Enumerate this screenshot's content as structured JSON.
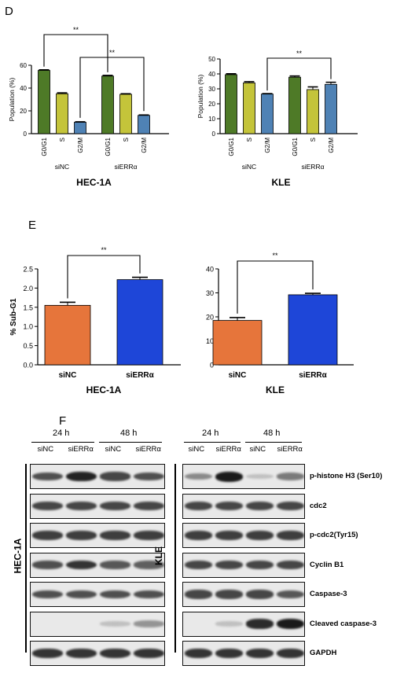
{
  "panels": {
    "d": "D",
    "e": "E",
    "f": "F"
  },
  "sig": "**",
  "colors": {
    "green": "#4e7a27",
    "yellow": "#c4c43a",
    "steel": "#4f82b5",
    "orange": "#e6753b",
    "blue": "#1e46d8"
  },
  "chart_data": [
    {
      "type": "bar",
      "panel": "D",
      "subtitle": "HEC-1A",
      "ylabel": "Population (%)",
      "ylim": [
        0,
        60
      ],
      "yticks": [
        "0",
        "20",
        "40",
        "60"
      ],
      "groups": [
        {
          "name": "siNC",
          "categories": [
            "G0/G1",
            "S",
            "G2/M"
          ],
          "values": [
            55.5,
            35,
            10
          ],
          "errors": [
            0.5,
            0.8,
            0.4
          ]
        },
        {
          "name": "siERRα",
          "categories": [
            "G0/G1",
            "S",
            "G2/M"
          ],
          "values": [
            50.5,
            34.5,
            16
          ],
          "errors": [
            0.6,
            0.5,
            0.4
          ]
        }
      ]
    },
    {
      "type": "bar",
      "panel": "D",
      "subtitle": "KLE",
      "ylabel": "Population (%)",
      "ylim": [
        0,
        50
      ],
      "yticks": [
        "0",
        "10",
        "20",
        "30",
        "40",
        "50"
      ],
      "groups": [
        {
          "name": "siNC",
          "categories": [
            "G0/G1",
            "S",
            "G2/M"
          ],
          "values": [
            39.5,
            34,
            26.5
          ],
          "errors": [
            0.6,
            0.8,
            0.3
          ]
        },
        {
          "name": "siERRα",
          "categories": [
            "G0/G1",
            "S",
            "G2/M"
          ],
          "values": [
            37.8,
            29.5,
            33
          ],
          "errors": [
            0.8,
            1.8,
            1.4
          ]
        }
      ]
    },
    {
      "type": "bar",
      "panel": "E",
      "subtitle": "HEC-1A",
      "ylabel": "% Sub-G1",
      "ylim": [
        0,
        2.5
      ],
      "yticks": [
        "0.0",
        "0.5",
        "1.0",
        "1.5",
        "2.0",
        "2.5"
      ],
      "categories": [
        "siNC",
        "siERRα"
      ],
      "values": [
        1.55,
        2.22
      ],
      "errors": [
        0.08,
        0.06
      ]
    },
    {
      "type": "bar",
      "panel": "E",
      "subtitle": "KLE",
      "ylabel": "% Sub-G1",
      "ylim": [
        0,
        40
      ],
      "yticks": [
        "0",
        "10",
        "20",
        "30",
        "40"
      ],
      "categories": [
        "siNC",
        "siERRα"
      ],
      "values": [
        18.5,
        29.2
      ],
      "errors": [
        1.2,
        0.6
      ]
    }
  ],
  "western": {
    "times": [
      "24 h",
      "48 h"
    ],
    "lanes": [
      "siNC",
      "siERRα",
      "siNC",
      "siERRα"
    ],
    "cells": [
      "HEC-1A",
      "KLE"
    ],
    "proteins": [
      "p-histone H3 (Ser10)",
      "cdc2",
      "p-cdc2(Tyr15)",
      "Cyclin B1",
      "Caspase-3",
      "Cleaved caspase-3",
      "GAPDH"
    ],
    "hec_intensity": [
      [
        0.7,
        0.95,
        0.75,
        0.7
      ],
      [
        0.75,
        0.75,
        0.75,
        0.75
      ],
      [
        0.8,
        0.8,
        0.8,
        0.8
      ],
      [
        0.7,
        0.85,
        0.65,
        0.6
      ],
      [
        0.7,
        0.7,
        0.7,
        0.7
      ],
      [
        0.0,
        0.0,
        0.05,
        0.3
      ],
      [
        0.85,
        0.85,
        0.85,
        0.85
      ]
    ],
    "kle_intensity": [
      [
        0.35,
        1.0,
        0.05,
        0.45
      ],
      [
        0.75,
        0.75,
        0.75,
        0.75
      ],
      [
        0.8,
        0.8,
        0.8,
        0.8
      ],
      [
        0.75,
        0.75,
        0.75,
        0.75
      ],
      [
        0.75,
        0.75,
        0.75,
        0.65
      ],
      [
        0.0,
        0.05,
        0.9,
        1.0
      ],
      [
        0.85,
        0.85,
        0.85,
        0.85
      ]
    ]
  }
}
